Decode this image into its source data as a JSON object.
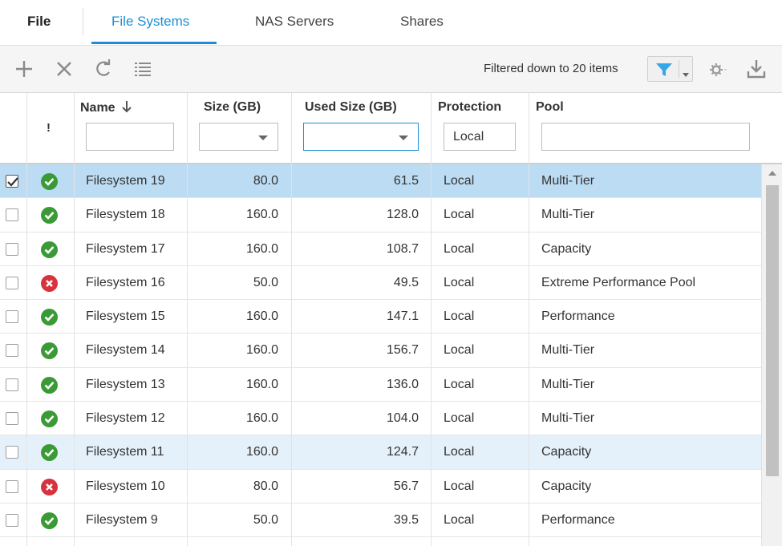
{
  "nav": {
    "title": "File",
    "tabs": [
      {
        "label": "File Systems",
        "active": true
      },
      {
        "label": "NAS Servers",
        "active": false
      },
      {
        "label": "Shares",
        "active": false
      }
    ]
  },
  "toolbar": {
    "icons": [
      "add-icon",
      "delete-icon",
      "refresh-icon",
      "details-icon"
    ],
    "filter_status": "Filtered down to 20 items",
    "right_icons": [
      "filter-icon",
      "gear-icon",
      "export-icon"
    ],
    "accent": "#1a8fd8"
  },
  "columns": {
    "status": "!",
    "name": "Name",
    "name_sort": "descending",
    "size": "Size (GB)",
    "used": "Used Size (GB)",
    "protection": "Protection",
    "pool": "Pool"
  },
  "filters": {
    "name": "",
    "size": "",
    "used": "",
    "protection": "Local",
    "pool": ""
  },
  "rows": [
    {
      "checked": true,
      "status": "ok",
      "name": "Filesystem 19",
      "size": "80.0",
      "used": "61.5",
      "protection": "Local",
      "pool": "Multi-Tier"
    },
    {
      "checked": false,
      "status": "ok",
      "name": "Filesystem 18",
      "size": "160.0",
      "used": "128.0",
      "protection": "Local",
      "pool": "Multi-Tier"
    },
    {
      "checked": false,
      "status": "ok",
      "name": "Filesystem 17",
      "size": "160.0",
      "used": "108.7",
      "protection": "Local",
      "pool": "Capacity"
    },
    {
      "checked": false,
      "status": "err",
      "name": "Filesystem 16",
      "size": "50.0",
      "used": "49.5",
      "protection": "Local",
      "pool": "Extreme Performance Pool"
    },
    {
      "checked": false,
      "status": "ok",
      "name": "Filesystem 15",
      "size": "160.0",
      "used": "147.1",
      "protection": "Local",
      "pool": "Performance"
    },
    {
      "checked": false,
      "status": "ok",
      "name": "Filesystem 14",
      "size": "160.0",
      "used": "156.7",
      "protection": "Local",
      "pool": "Multi-Tier"
    },
    {
      "checked": false,
      "status": "ok",
      "name": "Filesystem 13",
      "size": "160.0",
      "used": "136.0",
      "protection": "Local",
      "pool": "Multi-Tier"
    },
    {
      "checked": false,
      "status": "ok",
      "name": "Filesystem 12",
      "size": "160.0",
      "used": "104.0",
      "protection": "Local",
      "pool": "Multi-Tier"
    },
    {
      "checked": false,
      "status": "ok",
      "name": "Filesystem 11",
      "size": "160.0",
      "used": "124.7",
      "protection": "Local",
      "pool": "Capacity"
    },
    {
      "checked": false,
      "status": "err",
      "name": "Filesystem 10",
      "size": "80.0",
      "used": "56.7",
      "protection": "Local",
      "pool": "Capacity"
    },
    {
      "checked": false,
      "status": "ok",
      "name": "Filesystem 9",
      "size": "50.0",
      "used": "39.5",
      "protection": "Local",
      "pool": "Performance"
    }
  ],
  "selected_row": 0,
  "hover_row": 8
}
